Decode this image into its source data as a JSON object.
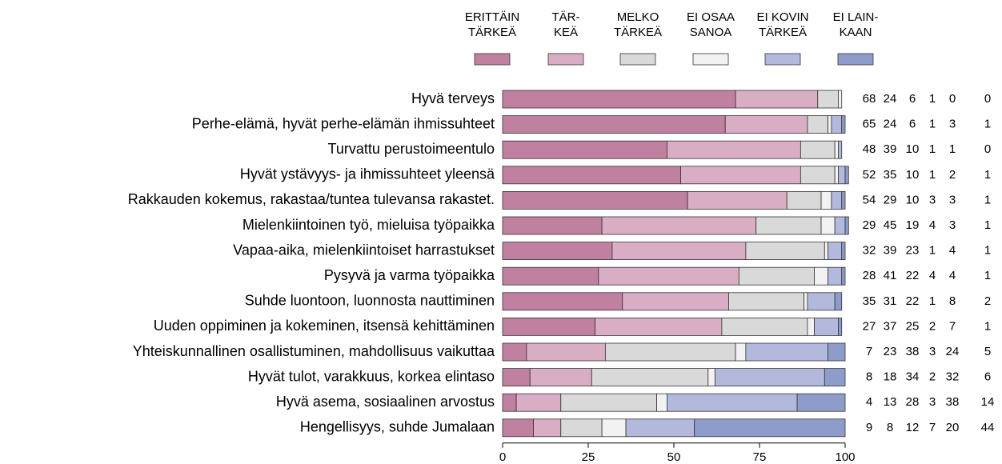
{
  "chart_data": {
    "type": "bar",
    "orientation": "horizontal",
    "stacked": true,
    "categories": [
      "Hyvä terveys",
      "Perhe-elämä, hyvät perhe-elämän ihmissuhteet",
      "Turvattu perustoimeentulo",
      "Hyvät ystävyys- ja ihmissuhteet yleensä",
      "Rakkauden kokemus, rakastaa/tuntea tulevansa rakastet.",
      "Mielenkiintoinen työ, mieluisa työpaikka",
      "Vapaa-aika, mielenkiintoiset harrastukset",
      "Pysyvä ja varma työpaikka",
      "Suhde luontoon, luonnosta nauttiminen",
      "Uuden oppiminen ja kokeminen, itsensä kehittäminen",
      "Yhteiskunnallinen osallistuminen, mahdollisuus vaikuttaa",
      "Hyvät tulot, varakkuus, korkea elintaso",
      "Hyvä asema, sosiaalinen arvostus",
      "Hengellisyys, suhde Jumalaan"
    ],
    "series": [
      {
        "name": "ERITTÄIN\nTÄRKEÄ",
        "color": "#c0809f",
        "values": [
          68,
          65,
          48,
          52,
          54,
          29,
          32,
          28,
          35,
          27,
          7,
          8,
          4,
          9
        ]
      },
      {
        "name": "TÄR-\nKEÄ",
        "color": "#d9aec4",
        "values": [
          24,
          24,
          39,
          35,
          29,
          45,
          39,
          41,
          31,
          37,
          23,
          18,
          13,
          8
        ]
      },
      {
        "name": "MELKO\nTÄRKEÄ",
        "color": "#d9d9d9",
        "values": [
          6,
          6,
          10,
          10,
          10,
          19,
          23,
          22,
          22,
          25,
          38,
          34,
          28,
          12
        ]
      },
      {
        "name": "EI OSAA\nSANOA",
        "color": "#f2f2f2",
        "values": [
          1,
          1,
          1,
          1,
          3,
          4,
          1,
          4,
          1,
          2,
          3,
          2,
          3,
          7
        ]
      },
      {
        "name": "EI KOVIN\nTÄRKEÄ",
        "color": "#b3b9dc",
        "values": [
          0,
          3,
          1,
          2,
          3,
          3,
          4,
          4,
          8,
          7,
          24,
          32,
          38,
          20
        ]
      },
      {
        "name": "EI LAIN-\nKAAN",
        "color": "#8e9ccc",
        "values": [
          0,
          1,
          0,
          1,
          1,
          1,
          1,
          1,
          2,
          1,
          5,
          6,
          14,
          44
        ]
      }
    ],
    "xlim": [
      0,
      100
    ],
    "xticks": [
      0,
      25,
      50,
      75,
      100
    ],
    "grid": false,
    "legend": "top"
  }
}
